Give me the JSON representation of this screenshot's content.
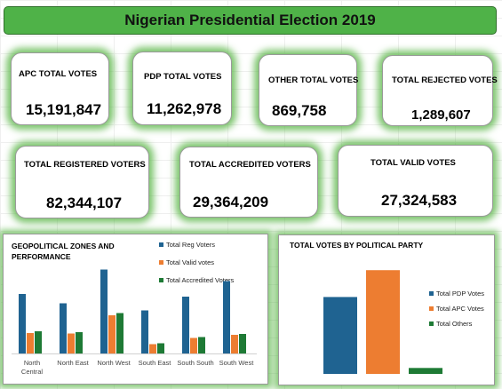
{
  "dashboard": {
    "title": "Nigerian Presidential Election 2019"
  },
  "cards": [
    {
      "key": "apc",
      "label": "APC TOTAL VOTES",
      "value": "15,191,847"
    },
    {
      "key": "pdp",
      "label": "PDP TOTAL VOTES",
      "value": "11,262,978"
    },
    {
      "key": "other",
      "label": "OTHER TOTAL VOTES",
      "value": "869,758"
    },
    {
      "key": "rejected",
      "label": "TOTAL REJECTED VOTES",
      "value": "1,289,607"
    },
    {
      "key": "registered",
      "label": "TOTAL REGISTERED VOTERS",
      "value": "82,344,107"
    },
    {
      "key": "accredited",
      "label": "TOTAL ACCREDITED VOTERS",
      "value": "29,364,209"
    },
    {
      "key": "valid",
      "label": "TOTAL VALID VOTES",
      "value": "27,324,583"
    }
  ],
  "colors": {
    "blue": "#1f6391",
    "orange": "#ed7d31",
    "green": "#1e7a35",
    "title_green": "#4fb248",
    "glow_green": "#50b23c"
  },
  "chart_data": [
    {
      "type": "bar",
      "title_lines": [
        "GEOPOLITICAL ZONES AND",
        "PERFORMANCE"
      ],
      "categories": [
        "North Central",
        "North East",
        "North West",
        "South East",
        "South South",
        "South West"
      ],
      "series": [
        {
          "name": "Total Reg Voters",
          "color": "#1f6391",
          "values": [
            13.4,
            11.3,
            18.9,
            9.7,
            12.8,
            16.3
          ]
        },
        {
          "name": "Total Valid votes",
          "color": "#ed7d31",
          "values": [
            4.6,
            4.5,
            8.6,
            2.1,
            3.5,
            4.2
          ]
        },
        {
          "name": "Total Accredited Voters",
          "color": "#1e7a35",
          "values": [
            5.0,
            4.8,
            9.1,
            2.3,
            3.7,
            4.4
          ]
        }
      ],
      "ylim": [
        0,
        20
      ],
      "legend": "right"
    },
    {
      "type": "bar",
      "title": "TOTAL VOTES BY POLITICAL PARTY",
      "series": [
        {
          "name": "Total PDP Votes",
          "color": "#1f6391",
          "value": 11262978
        },
        {
          "name": "Total APC Votes",
          "color": "#ed7d31",
          "value": 15191847
        },
        {
          "name": "Total Others",
          "color": "#1e7a35",
          "value": 869758
        }
      ],
      "ylim": [
        0,
        16000000
      ],
      "legend": "right"
    }
  ]
}
